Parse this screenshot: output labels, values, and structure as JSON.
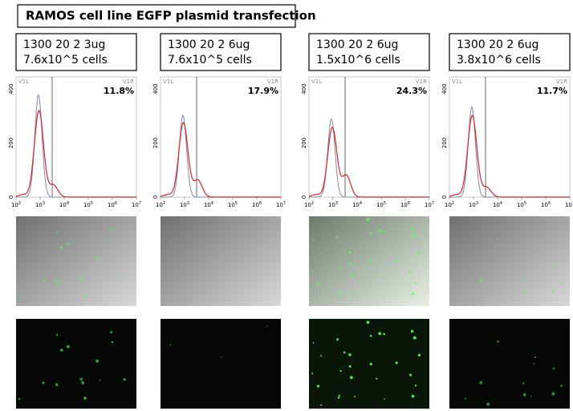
{
  "title": "RAMOS cell line EGFP plasmid transfection",
  "panels": [
    {
      "label": [
        "1300 20 2 3ug",
        "7.6x10^5 cells"
      ],
      "gate_left": "V1L",
      "gate_right": "V1R",
      "percent": "11.8%"
    },
    {
      "label": [
        "1300 20 2 6ug",
        "7.6x10^5 cells"
      ],
      "gate_left": "V1L",
      "gate_right": "V1R",
      "percent": "17.9%"
    },
    {
      "label": [
        "1300 20 2 6ug",
        "1.5x10^6 cells"
      ],
      "gate_left": "V1L",
      "gate_right": "V1R",
      "percent": "24.3%"
    },
    {
      "label": [
        "1300 20 2 6ug",
        "3.8x10^6 cells"
      ],
      "gate_left": "V1L",
      "gate_right": "V1R",
      "percent": "11.7%"
    }
  ],
  "y_ticks": [
    "0",
    "200",
    "400"
  ],
  "x_ticks": [
    {
      "base": "10",
      "exp": "2"
    },
    {
      "base": "10",
      "exp": "3"
    },
    {
      "base": "10",
      "exp": "4"
    },
    {
      "base": "10",
      "exp": "5"
    },
    {
      "base": "10",
      "exp": "6"
    },
    {
      "base": "10",
      "exp": "7"
    }
  ]
}
